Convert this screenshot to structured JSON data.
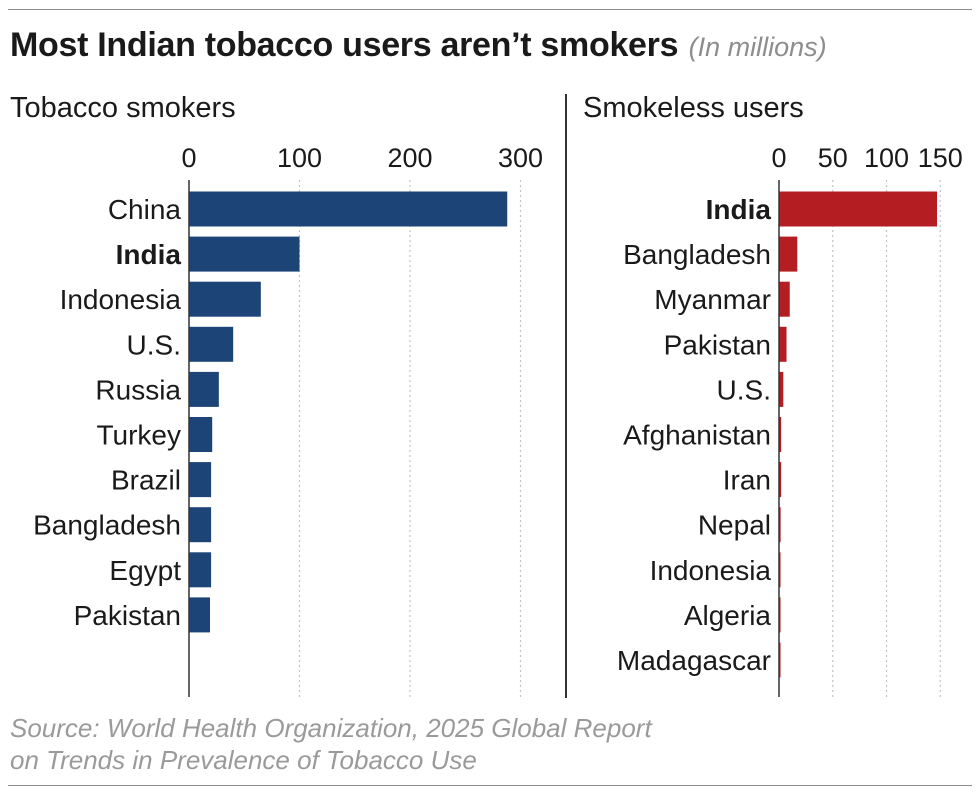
{
  "title": "Most Indian tobacco users aren’t smokers",
  "unit_note": "(In millions)",
  "source_line1": "Source: World Health Organization, 2025 Global Report",
  "source_line2": "on Trends in Prevalence of Tobacco Use",
  "colors": {
    "smokers": "#1d4477",
    "smokeless": "#b41e23",
    "text": "#1a1a1a",
    "muted": "#9a9a9a"
  },
  "chart_data": [
    {
      "type": "bar",
      "orientation": "horizontal",
      "title": "Tobacco smokers",
      "unit": "millions",
      "xlim": [
        0,
        300
      ],
      "ticks": [
        0,
        100,
        200,
        300
      ],
      "grid": "vertical dotted",
      "highlight": "India",
      "categories": [
        "China",
        "India",
        "Indonesia",
        "U.S.",
        "Russia",
        "Turkey",
        "Brazil",
        "Bangladesh",
        "Egypt",
        "Pakistan"
      ],
      "values": [
        288,
        100,
        65,
        40,
        27,
        21,
        20,
        20,
        20,
        19
      ]
    },
    {
      "type": "bar",
      "orientation": "horizontal",
      "title": "Smokeless users",
      "unit": "millions",
      "xlim": [
        0,
        150
      ],
      "ticks": [
        0,
        50,
        100,
        150
      ],
      "grid": "vertical dotted",
      "highlight": "India",
      "categories": [
        "India",
        "Bangladesh",
        "Myanmar",
        "Pakistan",
        "U.S.",
        "Afghanistan",
        "Iran",
        "Nepal",
        "Indonesia",
        "Algeria",
        "Madagascar"
      ],
      "values": [
        147,
        17,
        10,
        7,
        4,
        2,
        2,
        1.5,
        1,
        0.5,
        0.5
      ]
    }
  ]
}
